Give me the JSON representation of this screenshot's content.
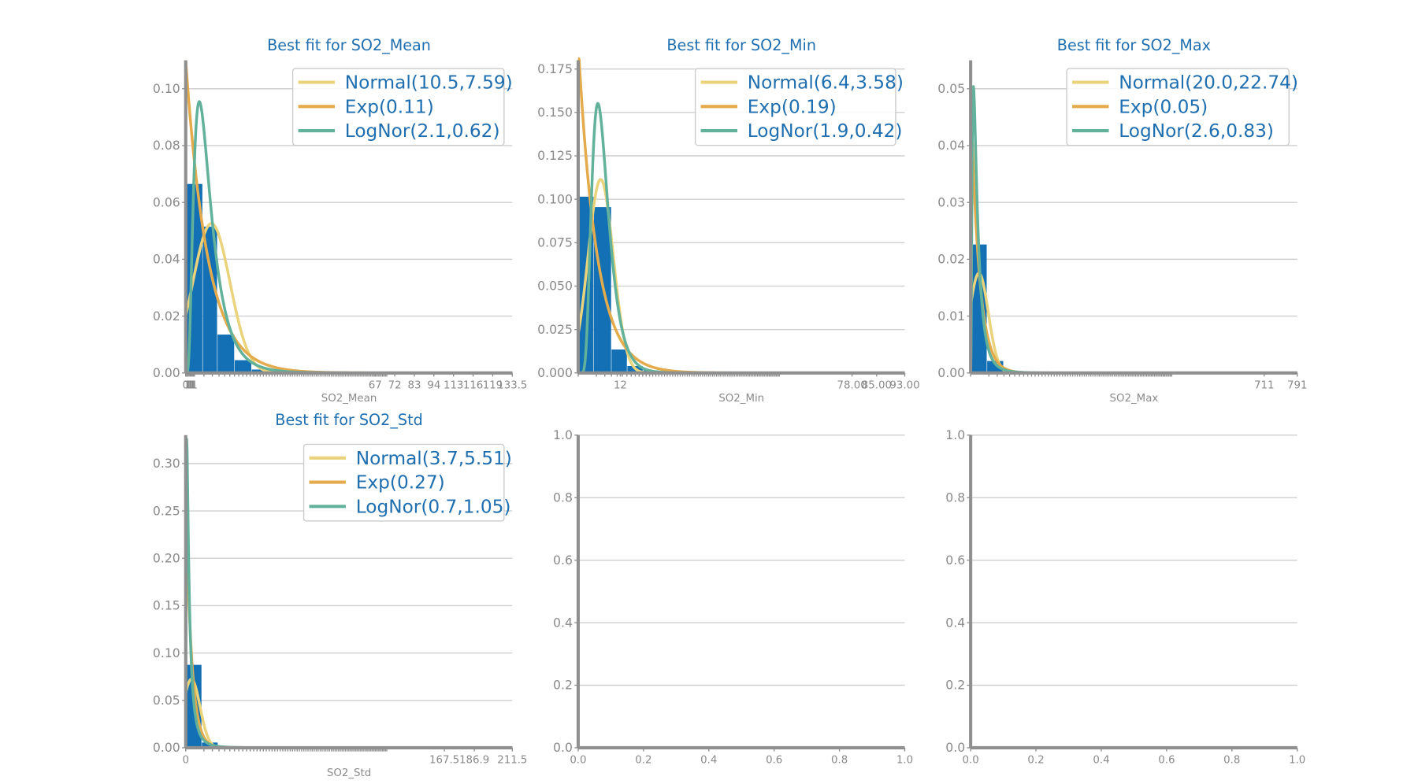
{
  "colors": {
    "bar": "#1370b4",
    "normal": "#ead37a",
    "exp": "#e3ab4c",
    "lognorm": "#62b19a",
    "grid": "#cfcfcf",
    "axis": "#8f8f8f",
    "text": "#1f6fb0"
  },
  "chart_data": [
    {
      "type": "bar",
      "title": "Best fit for SO2_Mean",
      "xlabel": "SO2_Mean",
      "ylim": [
        0,
        0.11
      ],
      "yticks": [
        "0.00",
        "0.02",
        "0.04",
        "0.06",
        "0.08",
        "0.10"
      ],
      "xlim": [
        0,
        133.5
      ],
      "xtick_labels": [
        "0",
        "1",
        "1",
        "1",
        "1",
        "1",
        "1",
        "1",
        "1",
        "67",
        "72",
        "83",
        "94",
        "113",
        "116",
        "119",
        "133.5"
      ],
      "hist": {
        "bin_edges": [
          0,
          7,
          13,
          20,
          27,
          33,
          40,
          47
        ],
        "values": [
          0.0665,
          0.0515,
          0.0135,
          0.0045,
          0.0012,
          0.0005,
          0.0002
        ]
      },
      "legend": [
        "Normal(10.5,7.59)",
        "Exp(0.11)",
        "LogNor(2.1,0.62)"
      ],
      "fits": {
        "normal": {
          "mu": 10.5,
          "sigma": 7.59
        },
        "exp": {
          "rate": 0.11
        },
        "lognorm": {
          "mu": 2.1,
          "sigma": 0.62
        }
      }
    },
    {
      "type": "bar",
      "title": "Best fit for SO2_Min",
      "xlabel": "SO2_Min",
      "ylim": [
        0,
        0.18
      ],
      "yticks": [
        "0.000",
        "0.025",
        "0.050",
        "0.075",
        "0.100",
        "0.125",
        "0.150",
        "0.175"
      ],
      "xlim": [
        0,
        93
      ],
      "xtick_labels": [
        "12",
        "78.00",
        "85.00",
        "93.00"
      ],
      "hist": {
        "bin_edges": [
          0,
          4.5,
          9.5,
          14,
          18.5,
          23,
          27.5
        ],
        "values": [
          0.1015,
          0.0955,
          0.0135,
          0.004,
          0.0015,
          0.0005
        ]
      },
      "legend": [
        "Normal(6.4,3.58)",
        "Exp(0.19)",
        "LogNor(1.9,0.42)"
      ],
      "fits": {
        "normal": {
          "mu": 6.4,
          "sigma": 3.58
        },
        "exp": {
          "rate": 0.19
        },
        "lognorm": {
          "mu": 1.9,
          "sigma": 0.42
        }
      }
    },
    {
      "type": "bar",
      "title": "Best fit for SO2_Max",
      "xlabel": "SO2_Max",
      "ylim": [
        0,
        0.055
      ],
      "yticks": [
        "0.00",
        "0.01",
        "0.02",
        "0.03",
        "0.04",
        "0.05"
      ],
      "xlim": [
        0,
        791
      ],
      "xtick_labels": [
        "711",
        "791"
      ],
      "hist": {
        "bin_edges": [
          0,
          40,
          80,
          120,
          160
        ],
        "values": [
          0.0226,
          0.0021,
          0.0003,
          0.0001
        ]
      },
      "legend": [
        "Normal(20.0,22.74)",
        "Exp(0.05)",
        "LogNor(2.6,0.83)"
      ],
      "fits": {
        "normal": {
          "mu": 20.0,
          "sigma": 22.74
        },
        "exp": {
          "rate": 0.05
        },
        "lognorm": {
          "mu": 2.6,
          "sigma": 0.83
        }
      }
    },
    {
      "type": "bar",
      "title": "Best fit for SO2_Std",
      "xlabel": "SO2_Std",
      "ylim": [
        0,
        0.33
      ],
      "yticks": [
        "0.00",
        "0.05",
        "0.10",
        "0.15",
        "0.20",
        "0.25",
        "0.30"
      ],
      "xlim": [
        0,
        211.5
      ],
      "xtick_labels": [
        "0",
        "167.5",
        "186.9",
        "211.5"
      ],
      "hist": {
        "bin_edges": [
          0,
          10.5,
          21,
          31.5,
          42
        ],
        "values": [
          0.0875,
          0.0055,
          0.0012,
          0.0003
        ]
      },
      "legend": [
        "Normal(3.7,5.51)",
        "Exp(0.27)",
        "LogNor(0.7,1.05)"
      ],
      "fits": {
        "normal": {
          "mu": 3.7,
          "sigma": 5.51
        },
        "exp": {
          "rate": 0.27
        },
        "lognorm": {
          "mu": 0.7,
          "sigma": 1.05
        }
      }
    },
    {
      "type": "line",
      "title": "",
      "xlabel": "",
      "ylim": [
        0,
        1
      ],
      "yticks": [
        "0.0",
        "0.2",
        "0.4",
        "0.6",
        "0.8",
        "1.0"
      ],
      "xlim": [
        0,
        1
      ],
      "xtick_labels": [
        "0.0",
        "0.2",
        "0.4",
        "0.6",
        "0.8",
        "1.0"
      ],
      "empty": true
    },
    {
      "type": "line",
      "title": "",
      "xlabel": "",
      "ylim": [
        0,
        1
      ],
      "yticks": [
        "0.0",
        "0.2",
        "0.4",
        "0.6",
        "0.8",
        "1.0"
      ],
      "xlim": [
        0,
        1
      ],
      "xtick_labels": [
        "0.0",
        "0.2",
        "0.4",
        "0.6",
        "0.8",
        "1.0"
      ],
      "empty": true
    }
  ]
}
